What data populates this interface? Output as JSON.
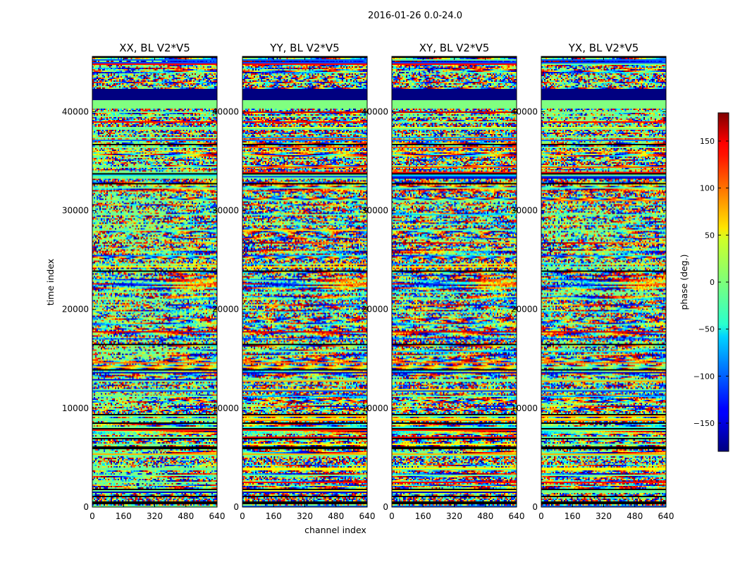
{
  "figure": {
    "suptitle": "2016-01-26 0.0-24.0"
  },
  "chart_data": {
    "type": "heatmap",
    "colormap": "jet",
    "panels": [
      {
        "title": "XX, BL V2*V5"
      },
      {
        "title": "YY, BL V2*V5"
      },
      {
        "title": "XY, BL V2*V5"
      },
      {
        "title": "YX, BL V2*V5"
      }
    ],
    "x": {
      "label": "channel index",
      "lim": [
        0,
        640
      ],
      "ticks": [
        0,
        160,
        320,
        480,
        640
      ]
    },
    "y": {
      "label": "time index",
      "lim": [
        0,
        45600
      ],
      "ticks": [
        0,
        10000,
        20000,
        30000,
        40000
      ]
    },
    "colorbar": {
      "label": "phase (deg.)",
      "lim": [
        -180,
        180
      ],
      "ticks": [
        -150,
        -100,
        -50,
        0,
        50,
        100,
        150
      ],
      "tick_labels": [
        "−150",
        "−100",
        "−50",
        "0",
        "50",
        "100",
        "150"
      ]
    }
  }
}
